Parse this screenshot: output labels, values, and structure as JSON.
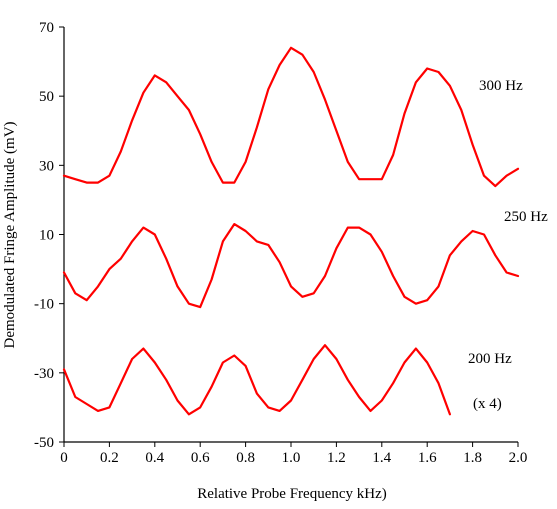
{
  "chart_data": {
    "type": "line",
    "title": "",
    "xlabel": "Relative Probe Frequency kHz)",
    "ylabel": "Demodulated Fringe Amplitude (mV)",
    "xlim": [
      0,
      2.0
    ],
    "ylim": [
      -50,
      70
    ],
    "grid": false,
    "legend": "none",
    "x_ticks": [
      "0",
      "0.2",
      "0.4",
      "0.6",
      "0.8",
      "1.0",
      "1.2",
      "1.4",
      "1.6",
      "1.8",
      "2.0"
    ],
    "y_ticks": [
      "70",
      "50",
      "30",
      "10",
      "-10",
      "-30",
      "-50"
    ],
    "color": "#ff0000",
    "series": [
      {
        "name": "300 Hz",
        "x": [
          0,
          0.05,
          0.1,
          0.15,
          0.2,
          0.25,
          0.3,
          0.35,
          0.4,
          0.45,
          0.5,
          0.55,
          0.6,
          0.65,
          0.7,
          0.75,
          0.8,
          0.85,
          0.9,
          0.95,
          1.0,
          1.05,
          1.1,
          1.15,
          1.2,
          1.25,
          1.3,
          1.35,
          1.4,
          1.45,
          1.5,
          1.55,
          1.6,
          1.65,
          1.7,
          1.75,
          1.8,
          1.85,
          1.9,
          1.95,
          2.0
        ],
        "y": [
          27,
          26,
          25,
          25,
          27,
          34,
          43,
          51,
          56,
          54,
          50,
          46,
          39,
          31,
          25,
          25,
          31,
          41,
          52,
          59,
          64,
          62,
          57,
          49,
          40,
          31,
          26,
          26,
          26,
          33,
          45,
          54,
          58,
          57,
          53,
          46,
          36,
          27,
          24,
          27,
          29
        ]
      },
      {
        "name": "250 Hz",
        "x": [
          0,
          0.05,
          0.1,
          0.15,
          0.2,
          0.25,
          0.3,
          0.35,
          0.4,
          0.45,
          0.5,
          0.55,
          0.6,
          0.65,
          0.7,
          0.75,
          0.8,
          0.85,
          0.9,
          0.95,
          1.0,
          1.05,
          1.1,
          1.15,
          1.2,
          1.25,
          1.3,
          1.35,
          1.4,
          1.45,
          1.5,
          1.55,
          1.6,
          1.65,
          1.7,
          1.75,
          1.8,
          1.85,
          1.9,
          1.95,
          2.0
        ],
        "y": [
          -1,
          -7,
          -9,
          -5,
          0,
          3,
          8,
          12,
          10,
          3,
          -5,
          -10,
          -11,
          -3,
          8,
          13,
          11,
          8,
          7,
          2,
          -5,
          -8,
          -7,
          -2,
          6,
          12,
          12,
          10,
          5,
          -2,
          -8,
          -10,
          -9,
          -5,
          4,
          8,
          11,
          10,
          4,
          -1,
          -2
        ]
      },
      {
        "name": "200 Hz",
        "x": [
          0,
          0.05,
          0.1,
          0.15,
          0.2,
          0.25,
          0.3,
          0.35,
          0.4,
          0.45,
          0.5,
          0.55,
          0.6,
          0.65,
          0.7,
          0.75,
          0.8,
          0.85,
          0.9,
          0.95,
          1.0,
          1.05,
          1.1,
          1.15,
          1.2,
          1.25,
          1.3,
          1.35,
          1.4,
          1.45,
          1.5,
          1.55,
          1.6,
          1.65,
          1.7
        ],
        "y": [
          -29,
          -37,
          -39,
          -41,
          -40,
          -33,
          -26,
          -23,
          -27,
          -32,
          -38,
          -42,
          -40,
          -34,
          -27,
          -25,
          -28,
          -36,
          -40,
          -41,
          -38,
          -32,
          -26,
          -22,
          -26,
          -32,
          -37,
          -41,
          -38,
          -33,
          -27,
          -23,
          -27,
          -33,
          -42
        ]
      }
    ],
    "annotations": [
      "300 Hz",
      "250 Hz",
      "200 Hz",
      "(x 4)"
    ]
  }
}
